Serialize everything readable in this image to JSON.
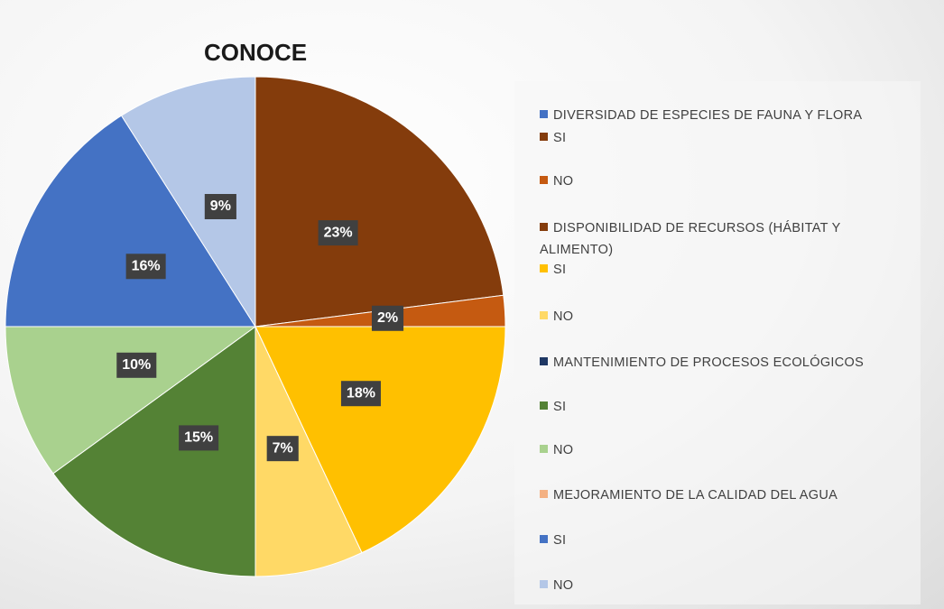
{
  "chart_data": {
    "type": "pie",
    "title": "CONOCE",
    "categories": [
      "DIVERSIDAD DE ESPECIES DE FAUNA Y FLORA",
      "SI",
      "NO",
      "DISPONIBILIDAD DE RECURSOS (HÁBITAT Y ALIMENTO)",
      "SI",
      "NO",
      "MANTENIMIENTO DE PROCESOS ECOLÓGICOS",
      "SI",
      "NO",
      "MEJORAMIENTO DE LA CALIDAD DEL AGUA",
      "SI",
      "NO"
    ],
    "values": [
      0,
      23,
      2,
      0,
      18,
      7,
      0,
      15,
      10,
      0,
      16,
      9
    ],
    "value_labels": [
      null,
      "23%",
      "2%",
      null,
      "18%",
      "7%",
      null,
      "15%",
      "10%",
      null,
      "16%",
      "9%"
    ],
    "colors": [
      "#4472c4",
      "#843c0c",
      "#c55a11",
      "#843c0c",
      "#ffc000",
      "#ffd966",
      "#1f3864",
      "#548235",
      "#a9d18e",
      "#f4b183",
      "#4472c4",
      "#b4c7e7"
    ],
    "legend": "right"
  }
}
